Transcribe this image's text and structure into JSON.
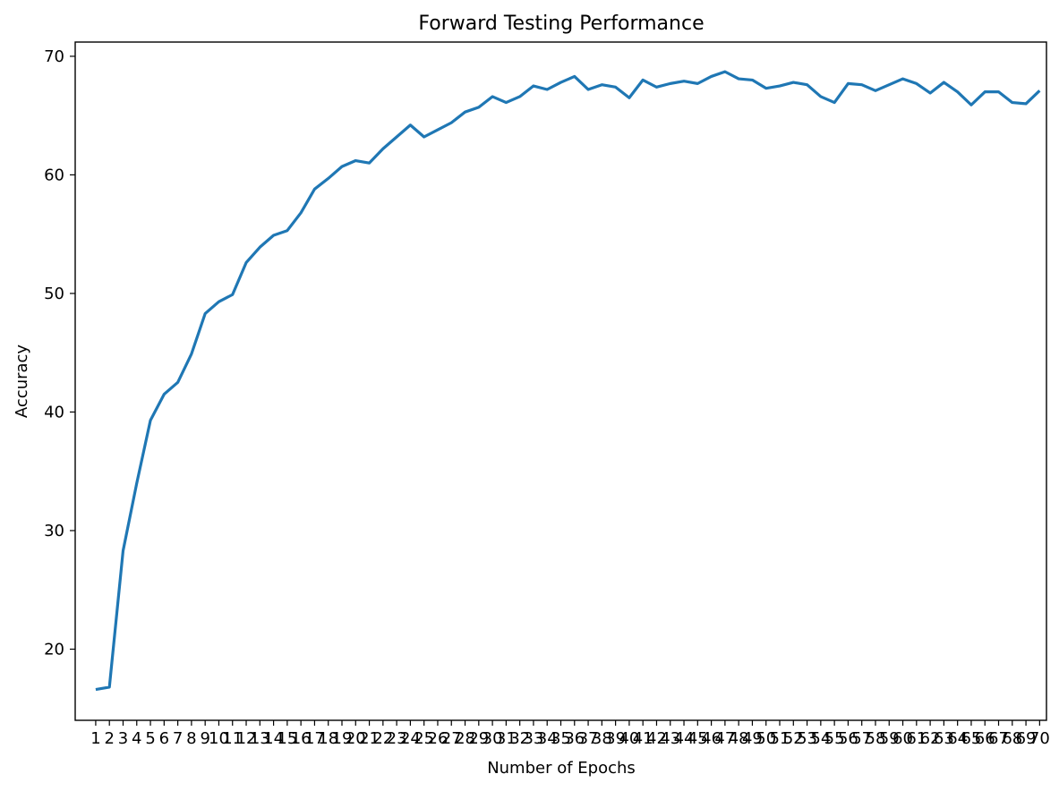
{
  "chart_data": {
    "type": "line",
    "title": "Forward Testing Performance",
    "xlabel": "Number of Epochs",
    "ylabel": "Accuracy",
    "ylim": [
      14.0,
      71.2
    ],
    "xlim": [
      -0.5,
      70.5
    ],
    "grid": false,
    "legend": "none",
    "line_color": "#1f77b4",
    "yticks": [
      20,
      30,
      40,
      50,
      60,
      70
    ],
    "series": [
      {
        "x": [
          1,
          2,
          3,
          4,
          5,
          6,
          7,
          8,
          9,
          10,
          11,
          12,
          13,
          14,
          15,
          16,
          17,
          18,
          19,
          20,
          21,
          22,
          23,
          24,
          25,
          26,
          27,
          28,
          29,
          30,
          31,
          32,
          33,
          34,
          35,
          36,
          37,
          38,
          39,
          40,
          41,
          42,
          43,
          44,
          45,
          46,
          47,
          48,
          49,
          50,
          51,
          52,
          53,
          54,
          55,
          56,
          57,
          58,
          59,
          60,
          61,
          62,
          63,
          64,
          65,
          66,
          67,
          68,
          69,
          70
        ],
        "values": [
          16.6,
          16.8,
          28.3,
          34.0,
          39.3,
          41.5,
          42.5,
          44.9,
          48.3,
          49.3,
          49.9,
          52.6,
          53.9,
          54.9,
          55.3,
          56.8,
          58.8,
          59.7,
          60.7,
          61.2,
          61.0,
          62.2,
          63.2,
          64.2,
          63.2,
          63.8,
          64.4,
          65.3,
          65.7,
          66.6,
          66.1,
          66.6,
          67.5,
          67.2,
          67.8,
          68.3,
          67.2,
          67.6,
          67.4,
          66.5,
          68.0,
          67.4,
          67.7,
          67.9,
          67.7,
          68.3,
          68.7,
          68.1,
          68.0,
          67.3,
          67.5,
          67.8,
          67.6,
          66.6,
          66.1,
          67.7,
          67.6,
          67.1,
          67.6,
          68.1,
          67.7,
          66.9,
          67.8,
          67.0,
          65.9,
          67.0,
          67.0,
          66.1,
          66.0,
          67.1
        ]
      }
    ]
  }
}
